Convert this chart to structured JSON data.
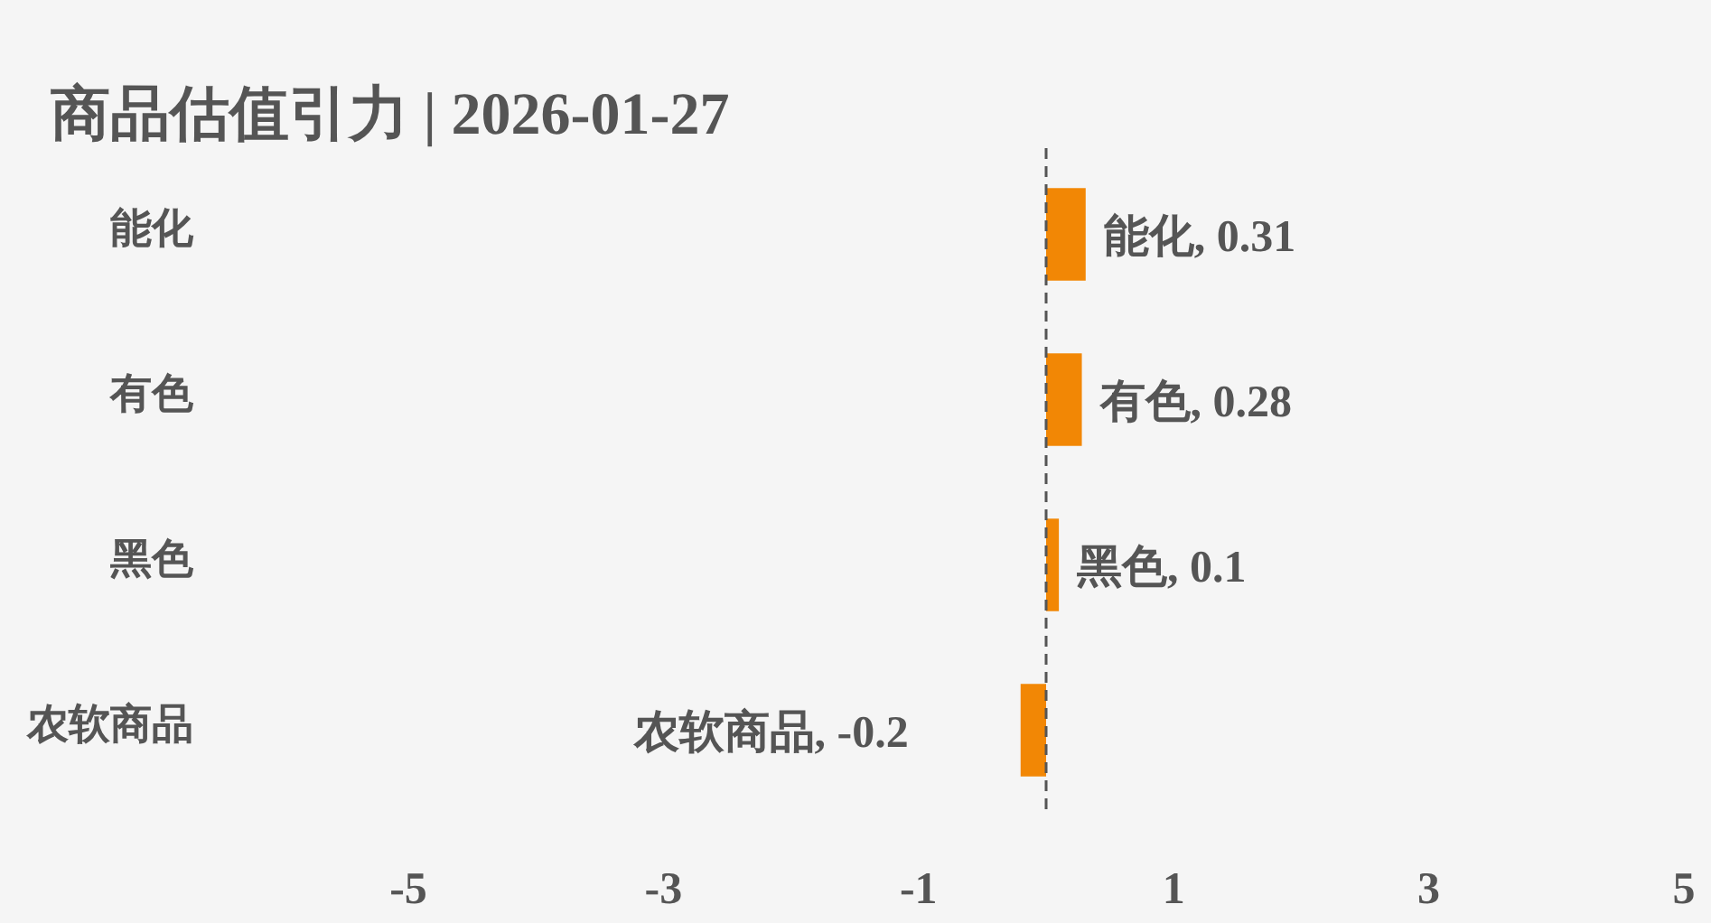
{
  "chart_data": {
    "type": "bar",
    "orientation": "horizontal",
    "title": "商品估值引力 | 2026-01-27",
    "categories": [
      "能化",
      "有色",
      "黑色",
      "农软商品"
    ],
    "values": [
      0.31,
      0.28,
      0.1,
      -0.2
    ],
    "value_labels": [
      "能化, 0.31",
      "有色, 0.28",
      "黑色, 0.1",
      "农软商品, -0.2"
    ],
    "color": "#f28705",
    "xlim": [
      -5,
      5
    ],
    "xticks": [
      -5,
      -3,
      -1,
      1,
      3,
      5
    ],
    "ref_lines": [
      {
        "axis": "x",
        "value": 0,
        "line_style": "dashed",
        "color": "#555555"
      }
    ],
    "grid": false
  }
}
